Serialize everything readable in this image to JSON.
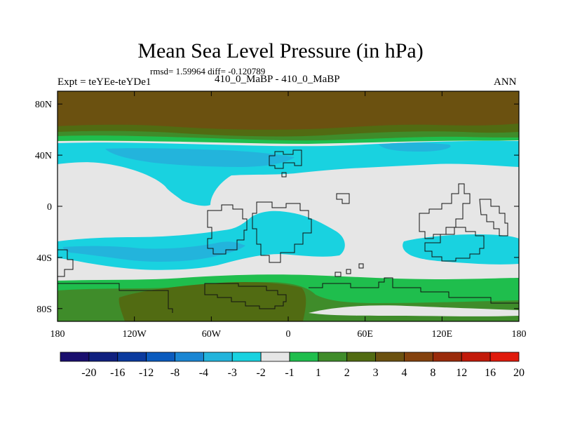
{
  "header": {
    "title": "Mean Sea Level Pressure (in hPa)",
    "stats": "rmsd= 1.59964 diff= -0.120789",
    "experiment": "Expt = teYEe-teYDe1",
    "comparison": "410_0_MaBP - 410_0_MaBP",
    "season": "ANN"
  },
  "map": {
    "lon_range": [
      -180,
      180
    ],
    "lat_range": [
      -90,
      90
    ],
    "lon_ticks": [
      {
        "value": -180,
        "label": "180"
      },
      {
        "value": -120,
        "label": "120W"
      },
      {
        "value": -60,
        "label": "60W"
      },
      {
        "value": 0,
        "label": "0"
      },
      {
        "value": 60,
        "label": "60E"
      },
      {
        "value": 120,
        "label": "120E"
      },
      {
        "value": 180,
        "label": "180"
      }
    ],
    "lat_ticks": [
      {
        "value": 80,
        "label": "80N"
      },
      {
        "value": 40,
        "label": "40N"
      },
      {
        "value": 0,
        "label": "0"
      },
      {
        "value": -40,
        "label": "40S"
      },
      {
        "value": -80,
        "label": "80S"
      }
    ]
  },
  "colorbar": {
    "colors": [
      "#1a0f6e",
      "#10207f",
      "#0b3a9e",
      "#0b5bbe",
      "#1a86d3",
      "#23b4dc",
      "#19d2e0",
      "#e6e6e6",
      "#1fbe4d",
      "#3f8c2a",
      "#516b12",
      "#6b5110",
      "#84420e",
      "#9a2b0b",
      "#c21a0a",
      "#e01a0c"
    ],
    "labels": [
      "-20",
      "-16",
      "-12",
      "-8",
      "-4",
      "-3",
      "-2",
      "-1",
      "1",
      "2",
      "3",
      "4",
      "8",
      "12",
      "16",
      "20"
    ]
  },
  "colors": {
    "brown": "#6b5110",
    "olive": "#516b12",
    "darkgreen": "#3f8c2a",
    "green": "#1fbe4d",
    "neutral": "#e6e6e6",
    "cyan": "#19d2e0",
    "midblue": "#23b4dc",
    "deepblue": "#1a86d3"
  }
}
